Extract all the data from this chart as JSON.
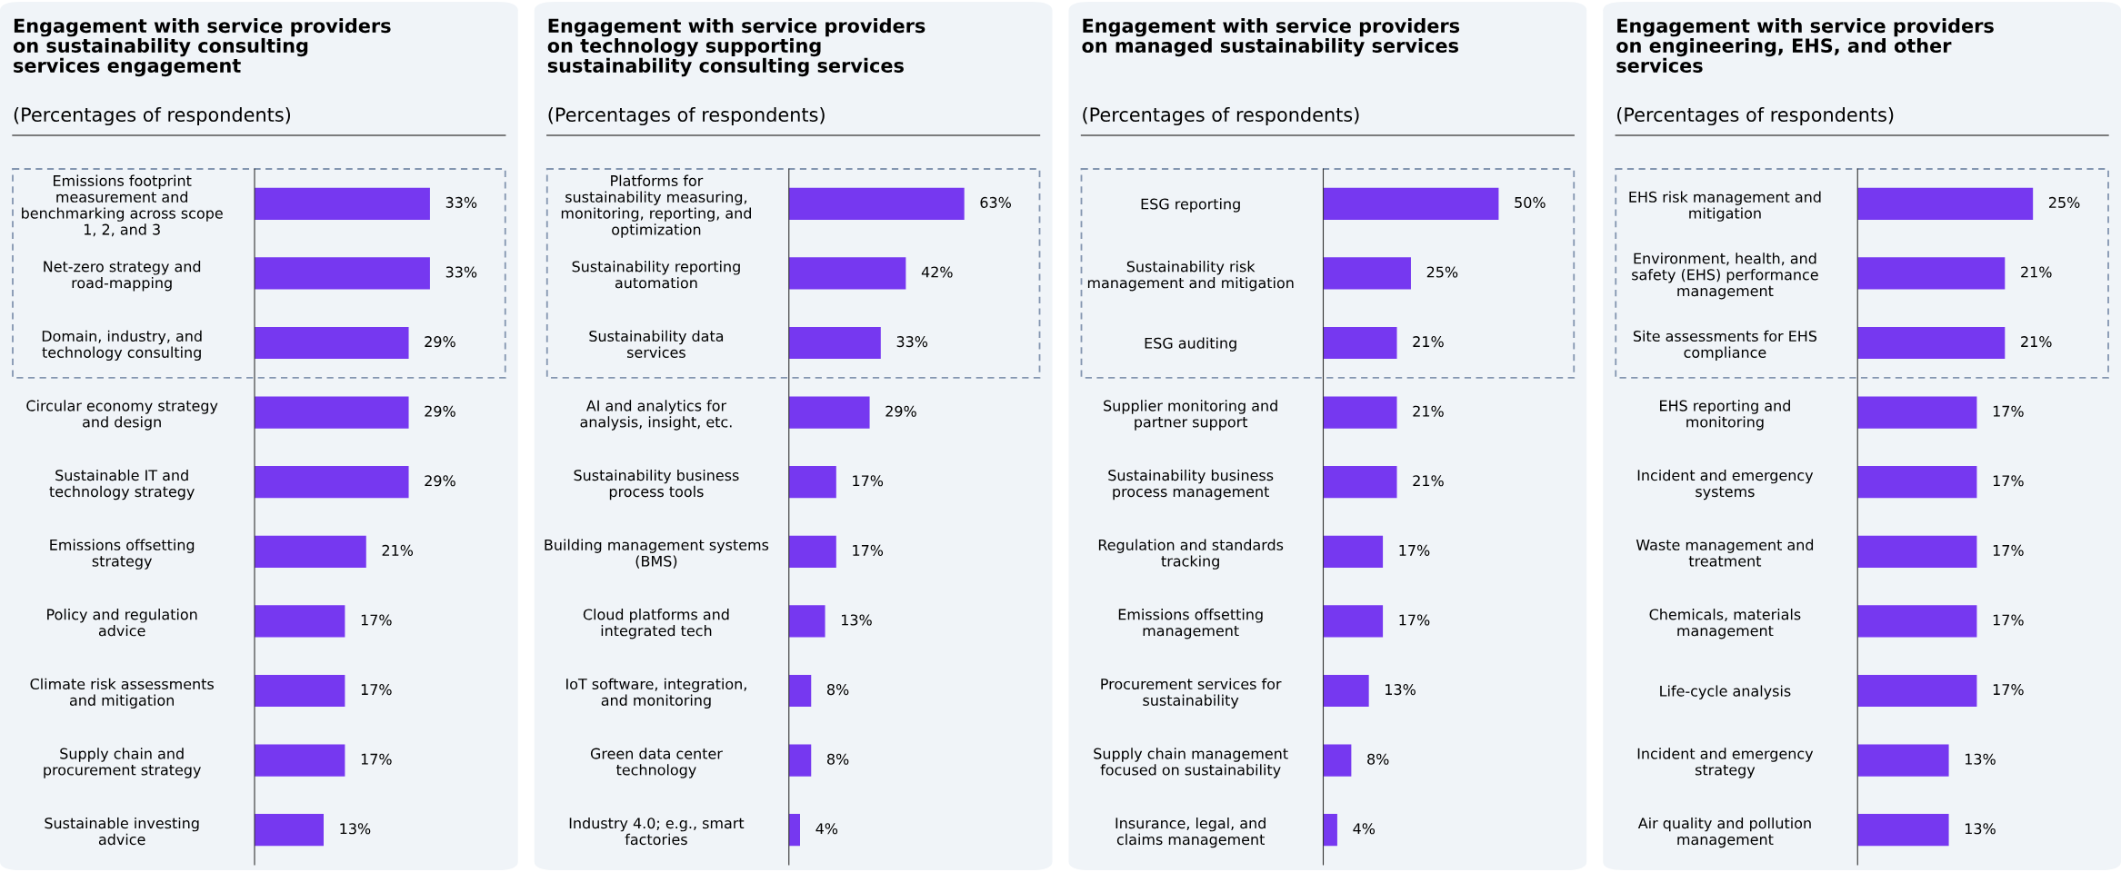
{
  "chart_data": [
    {
      "type": "bar",
      "orientation": "horizontal",
      "title": "Engagement with service providers on sustainability consulting services engagement",
      "subtitle": "(Percentages of respondents)",
      "color": "#7638f0",
      "categories": [
        "Emissions footprint measurement and benchmarking across scope 1, 2, and 3",
        "Net-zero strategy and road-mapping",
        "Domain, industry, and technology consulting",
        "Circular economy strategy and design",
        "Sustainable IT and technology strategy",
        "Emissions offsetting strategy",
        "Policy and regulation advice",
        "Climate risk assessments and mitigation",
        "Supply chain and procurement strategy",
        "Sustainable investing advice"
      ],
      "values": [
        33,
        33,
        29,
        29,
        29,
        21,
        17,
        17,
        17,
        13
      ],
      "value_labels": [
        "33%",
        "33%",
        "29%",
        "29%",
        "29%",
        "21%",
        "17%",
        "17%",
        "17%",
        "13%"
      ]
    },
    {
      "type": "bar",
      "orientation": "horizontal",
      "title": "Engagement with service providers on technology supporting sustainability consulting services",
      "subtitle": "(Percentages of respondents)",
      "color": "#7638f0",
      "categories": [
        "Platforms for sustainability measuring, monitoring, reporting, and optimization",
        "Sustainability reporting automation",
        "Sustainability data services",
        "AI and analytics for analysis, insight, etc.",
        "Sustainability business process tools",
        "Building management systems (BMS)",
        "Cloud platforms and integrated tech",
        "IoT software, integration, and monitoring",
        "Green data center technology",
        "Industry 4.0; e.g., smart factories"
      ],
      "values": [
        63,
        42,
        33,
        29,
        17,
        17,
        13,
        8,
        8,
        4
      ],
      "value_labels": [
        "63%",
        "42%",
        "33%",
        "29%",
        "17%",
        "17%",
        "13%",
        "8%",
        "8%",
        "4%"
      ]
    },
    {
      "type": "bar",
      "orientation": "horizontal",
      "title": "Engagement with service providers on managed sustainability services",
      "subtitle": "(Percentages of respondents)",
      "color": "#7638f0",
      "categories": [
        "ESG reporting",
        "Sustainability risk management and mitigation",
        "ESG auditing",
        "Supplier monitoring and partner support",
        "Sustainability business process management",
        "Regulation and standards tracking",
        "Emissions offsetting management",
        "Procurement services for sustainability",
        "Supply chain management focused on sustainability",
        "Insurance, legal, and claims management"
      ],
      "values": [
        50,
        25,
        21,
        21,
        21,
        17,
        17,
        13,
        8,
        4
      ],
      "value_labels": [
        "50%",
        "25%",
        "21%",
        "21%",
        "21%",
        "17%",
        "17%",
        "13%",
        "8%",
        "4%"
      ]
    },
    {
      "type": "bar",
      "orientation": "horizontal",
      "title": "Engagement with service providers on engineering, EHS, and other services",
      "subtitle": "(Percentages of respondents)",
      "color": "#7638f0",
      "categories": [
        "EHS risk management and mitigation",
        "Environment, health, and safety (EHS) performance management",
        "Site assessments for EHS compliance",
        "EHS reporting and monitoring",
        "Incident and emergency systems",
        "Waste management and treatment",
        "Chemicals, materials management",
        "Life-cycle analysis",
        "Incident and emergency strategy",
        "Air quality and pollution management"
      ],
      "values": [
        25,
        21,
        21,
        17,
        17,
        17,
        17,
        17,
        13,
        13
      ],
      "value_labels": [
        "25%",
        "21%",
        "21%",
        "17%",
        "17%",
        "17%",
        "17%",
        "17%",
        "13%",
        "13%"
      ]
    }
  ]
}
